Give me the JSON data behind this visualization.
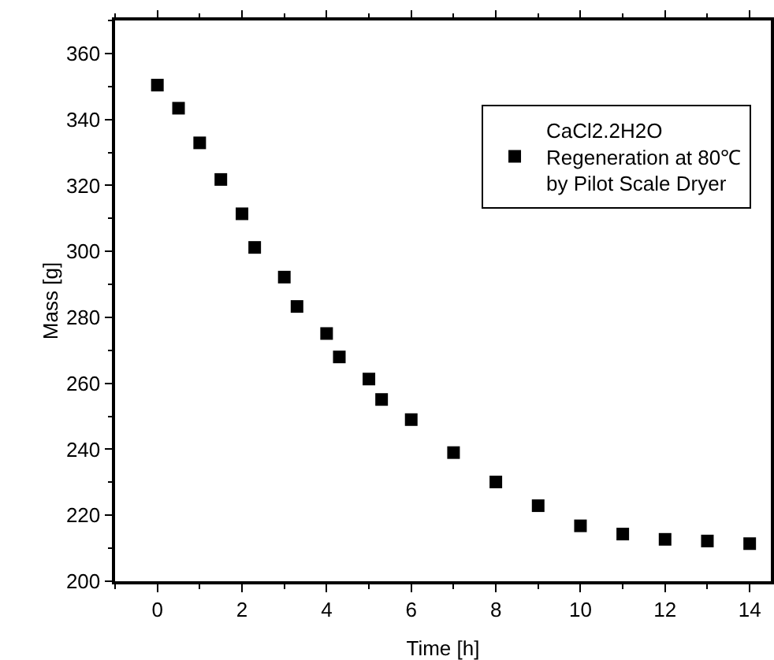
{
  "chart_data": {
    "type": "scatter",
    "xlabel": "Time [h]",
    "ylabel": "Mass [g]",
    "x": [
      0,
      0.5,
      1,
      1.5,
      2,
      2.3,
      3,
      3.3,
      4,
      4.3,
      5,
      5.3,
      6,
      7,
      8,
      9,
      10,
      11,
      12,
      13,
      14
    ],
    "series": [
      {
        "name": "CaCl2.2H2O\nRegeneration at 80℃\nby Pilot Scale Dryer",
        "color": "#000000",
        "values": [
          350.4,
          343.4,
          332.9,
          321.8,
          311.4,
          301.2,
          292.2,
          283.3,
          275.1,
          268.0,
          261.3,
          255.1,
          249.0,
          239.0,
          230.1,
          222.9,
          216.8,
          214.3,
          212.7,
          212.2,
          211.4
        ]
      }
    ],
    "xlim": [
      -1,
      14.5
    ],
    "xticks": [
      0,
      2,
      4,
      6,
      8,
      10,
      12,
      14
    ],
    "ylim": [
      200,
      370
    ],
    "yticks": [
      200,
      220,
      240,
      260,
      280,
      300,
      320,
      340,
      360
    ],
    "marker": "square",
    "legend": "top right",
    "grid": false
  }
}
